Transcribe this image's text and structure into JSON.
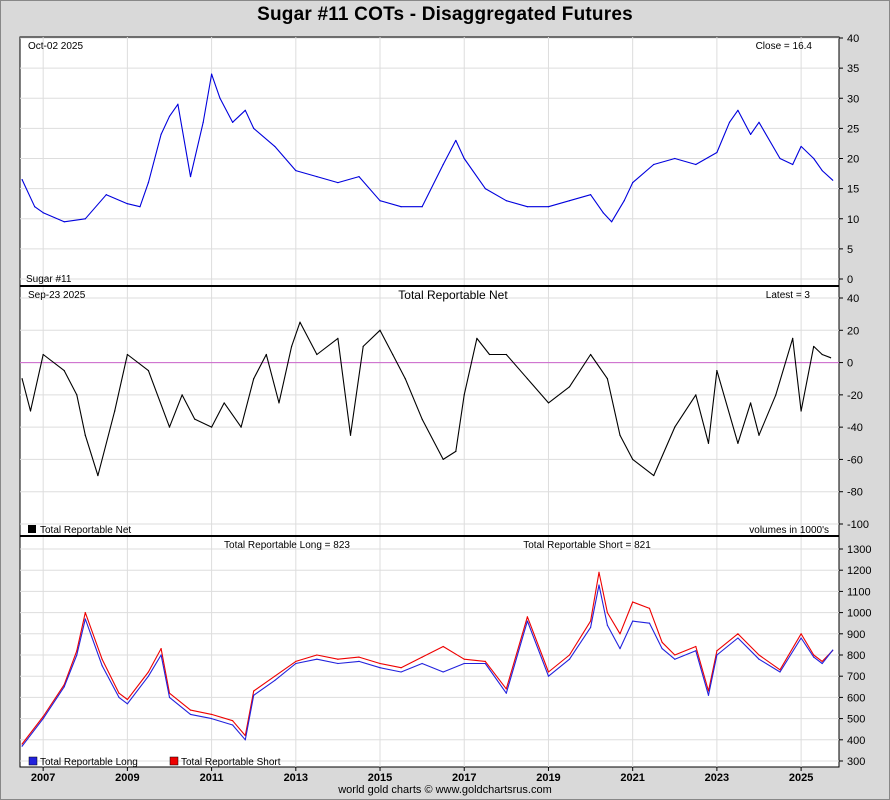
{
  "header": {
    "title": "Sugar #11 COTs - Disaggregated Futures"
  },
  "footer": {
    "text": "world gold charts © www.goldchartsrus.com"
  },
  "chart_data": [
    {
      "id": "price",
      "type": "line",
      "title": "Sugar #11",
      "date_label": "Oct-02  2025",
      "value_label": "Close = 16.4",
      "ylim": [
        0,
        40
      ],
      "yticks": [
        0,
        5,
        10,
        15,
        20,
        25,
        30,
        35,
        40
      ],
      "color": "#0000dd",
      "x": [
        2006.5,
        2006.8,
        2007.0,
        2007.5,
        2008.0,
        2008.5,
        2009.0,
        2009.3,
        2009.5,
        2009.8,
        2010.0,
        2010.2,
        2010.5,
        2010.8,
        2011.0,
        2011.2,
        2011.5,
        2011.8,
        2012.0,
        2012.5,
        2013.0,
        2013.5,
        2014.0,
        2014.5,
        2015.0,
        2015.5,
        2016.0,
        2016.5,
        2016.8,
        2017.0,
        2017.5,
        2018.0,
        2018.5,
        2019.0,
        2019.5,
        2020.0,
        2020.3,
        2020.5,
        2020.8,
        2021.0,
        2021.5,
        2022.0,
        2022.5,
        2023.0,
        2023.3,
        2023.5,
        2023.8,
        2024.0,
        2024.5,
        2024.8,
        2025.0,
        2025.3,
        2025.5,
        2025.75
      ],
      "y": [
        16.5,
        12,
        11,
        9.5,
        10,
        14,
        12.5,
        12,
        16,
        24,
        27,
        29,
        17,
        26,
        34,
        30,
        26,
        28,
        25,
        22,
        18,
        17,
        16,
        17,
        13,
        12,
        12,
        19,
        23,
        20,
        15,
        13,
        12,
        12,
        13,
        14,
        11,
        9.5,
        13,
        16,
        19,
        20,
        19,
        21,
        26,
        28,
        24,
        26,
        20,
        19,
        22,
        20,
        18,
        16.4
      ]
    },
    {
      "id": "net",
      "type": "line",
      "title": "Total Reportable Net",
      "date_label": "Sep-23  2025",
      "value_label": "Latest = 3",
      "legend": "Total Reportable Net",
      "units_note": "volumes in 1000's",
      "ylim": [
        -100,
        40
      ],
      "yticks": [
        -100,
        -80,
        -60,
        -40,
        -20,
        0,
        20,
        40
      ],
      "zero_line_color": "#cc66cc",
      "color": "#000000",
      "x": [
        2006.5,
        2006.7,
        2007.0,
        2007.5,
        2007.8,
        2008.0,
        2008.3,
        2008.7,
        2009.0,
        2009.5,
        2010.0,
        2010.3,
        2010.6,
        2011.0,
        2011.3,
        2011.7,
        2012.0,
        2012.3,
        2012.6,
        2012.9,
        2013.1,
        2013.5,
        2014.0,
        2014.3,
        2014.6,
        2015.0,
        2015.3,
        2015.6,
        2016.0,
        2016.5,
        2016.8,
        2017.0,
        2017.3,
        2017.6,
        2018.0,
        2018.5,
        2019.0,
        2019.5,
        2020.0,
        2020.4,
        2020.7,
        2021.0,
        2021.5,
        2022.0,
        2022.5,
        2022.8,
        2023.0,
        2023.5,
        2023.8,
        2024.0,
        2024.4,
        2024.8,
        2025.0,
        2025.3,
        2025.5,
        2025.7
      ],
      "y": [
        -10,
        -30,
        5,
        -5,
        -20,
        -45,
        -70,
        -30,
        5,
        -5,
        -40,
        -20,
        -35,
        -40,
        -25,
        -40,
        -10,
        5,
        -25,
        10,
        25,
        5,
        15,
        -45,
        10,
        20,
        5,
        -10,
        -35,
        -60,
        -55,
        -20,
        15,
        5,
        5,
        -10,
        -25,
        -15,
        5,
        -10,
        -45,
        -60,
        -70,
        -40,
        -20,
        -50,
        -5,
        -50,
        -25,
        -45,
        -20,
        15,
        -30,
        10,
        5,
        3
      ]
    },
    {
      "id": "volumes",
      "type": "line",
      "long_label": "Total Reportable Long = 823",
      "short_label": "Total Reportable Short = 821",
      "ylim": [
        300,
        1300
      ],
      "yticks": [
        300,
        400,
        500,
        600,
        700,
        800,
        900,
        1000,
        1100,
        1200,
        1300
      ],
      "series": [
        {
          "name": "Total Reportable Long",
          "color": "#2222dd",
          "x": [
            2006.5,
            2007.0,
            2007.5,
            2007.8,
            2008.0,
            2008.4,
            2008.8,
            2009.0,
            2009.5,
            2009.8,
            2010.0,
            2010.5,
            2011.0,
            2011.5,
            2011.8,
            2012.0,
            2012.5,
            2013.0,
            2013.5,
            2014.0,
            2014.5,
            2015.0,
            2015.5,
            2016.0,
            2016.5,
            2017.0,
            2017.5,
            2018.0,
            2018.5,
            2019.0,
            2019.5,
            2020.0,
            2020.2,
            2020.4,
            2020.7,
            2021.0,
            2021.4,
            2021.7,
            2022.0,
            2022.5,
            2022.8,
            2023.0,
            2023.5,
            2024.0,
            2024.5,
            2025.0,
            2025.3,
            2025.5,
            2025.75
          ],
          "y": [
            370,
            500,
            650,
            800,
            970,
            750,
            600,
            570,
            700,
            800,
            600,
            520,
            500,
            470,
            400,
            610,
            680,
            760,
            780,
            760,
            770,
            740,
            720,
            760,
            720,
            760,
            760,
            620,
            960,
            700,
            780,
            930,
            1130,
            940,
            830,
            960,
            950,
            830,
            780,
            820,
            610,
            800,
            880,
            780,
            720,
            880,
            790,
            760,
            823
          ]
        },
        {
          "name": "Total Reportable Short",
          "color": "#ee0000",
          "x": [
            2006.5,
            2007.0,
            2007.5,
            2007.8,
            2008.0,
            2008.4,
            2008.8,
            2009.0,
            2009.5,
            2009.8,
            2010.0,
            2010.5,
            2011.0,
            2011.5,
            2011.8,
            2012.0,
            2012.5,
            2013.0,
            2013.5,
            2014.0,
            2014.5,
            2015.0,
            2015.5,
            2016.0,
            2016.5,
            2017.0,
            2017.5,
            2018.0,
            2018.5,
            2019.0,
            2019.5,
            2020.0,
            2020.2,
            2020.4,
            2020.7,
            2021.0,
            2021.4,
            2021.7,
            2022.0,
            2022.5,
            2022.8,
            2023.0,
            2023.5,
            2024.0,
            2024.5,
            2025.0,
            2025.3,
            2025.5,
            2025.75
          ],
          "y": [
            380,
            510,
            660,
            820,
            1000,
            780,
            620,
            590,
            720,
            830,
            620,
            540,
            520,
            490,
            420,
            630,
            700,
            770,
            800,
            780,
            790,
            760,
            740,
            790,
            840,
            780,
            770,
            640,
            980,
            720,
            800,
            960,
            1190,
            1000,
            900,
            1050,
            1020,
            860,
            800,
            840,
            630,
            820,
            900,
            800,
            730,
            900,
            800,
            770,
            821
          ]
        }
      ]
    }
  ],
  "x_axis": {
    "xlim": [
      2006.45,
      2025.9
    ],
    "labels": [
      "2007",
      "2009",
      "2011",
      "2013",
      "2015",
      "2017",
      "2019",
      "2021",
      "2023",
      "2025"
    ],
    "positions": [
      2007,
      2009,
      2011,
      2013,
      2015,
      2017,
      2019,
      2021,
      2023,
      2025
    ]
  }
}
